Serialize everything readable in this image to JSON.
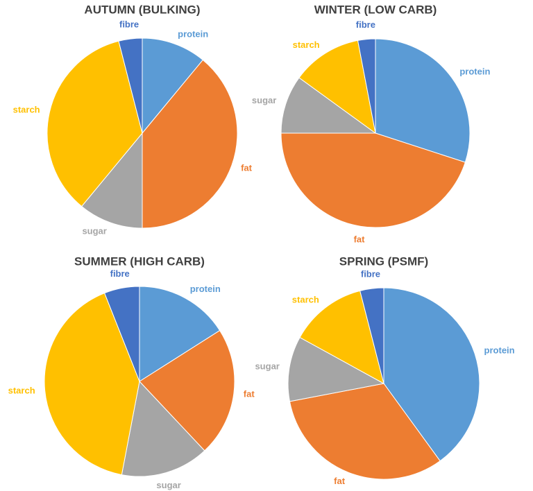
{
  "chart_data": [
    {
      "type": "pie",
      "title": "AUTUMN (BULKING)",
      "categories": [
        "protein",
        "fat",
        "sugar",
        "starch",
        "fibre"
      ],
      "values": [
        11,
        39,
        11,
        35,
        4
      ],
      "colors": [
        "#5b9bd5",
        "#ed7d31",
        "#a5a5a5",
        "#ffc000",
        "#4472c4"
      ]
    },
    {
      "type": "pie",
      "title": "WINTER (LOW CARB)",
      "categories": [
        "protein",
        "fat",
        "sugar",
        "starch",
        "fibre"
      ],
      "values": [
        30,
        45,
        10,
        12,
        3
      ],
      "colors": [
        "#5b9bd5",
        "#ed7d31",
        "#a5a5a5",
        "#ffc000",
        "#4472c4"
      ]
    },
    {
      "type": "pie",
      "title": "SUMMER (HIGH CARB)",
      "categories": [
        "protein",
        "fat",
        "sugar",
        "starch",
        "fibre"
      ],
      "values": [
        16,
        22,
        15,
        41,
        6
      ],
      "colors": [
        "#5b9bd5",
        "#ed7d31",
        "#a5a5a5",
        "#ffc000",
        "#4472c4"
      ]
    },
    {
      "type": "pie",
      "title": "SPRING (PSMF)",
      "categories": [
        "protein",
        "fat",
        "sugar",
        "starch",
        "fibre"
      ],
      "values": [
        40,
        32,
        11,
        13,
        4
      ],
      "colors": [
        "#5b9bd5",
        "#ed7d31",
        "#a5a5a5",
        "#ffc000",
        "#4472c4"
      ]
    }
  ]
}
